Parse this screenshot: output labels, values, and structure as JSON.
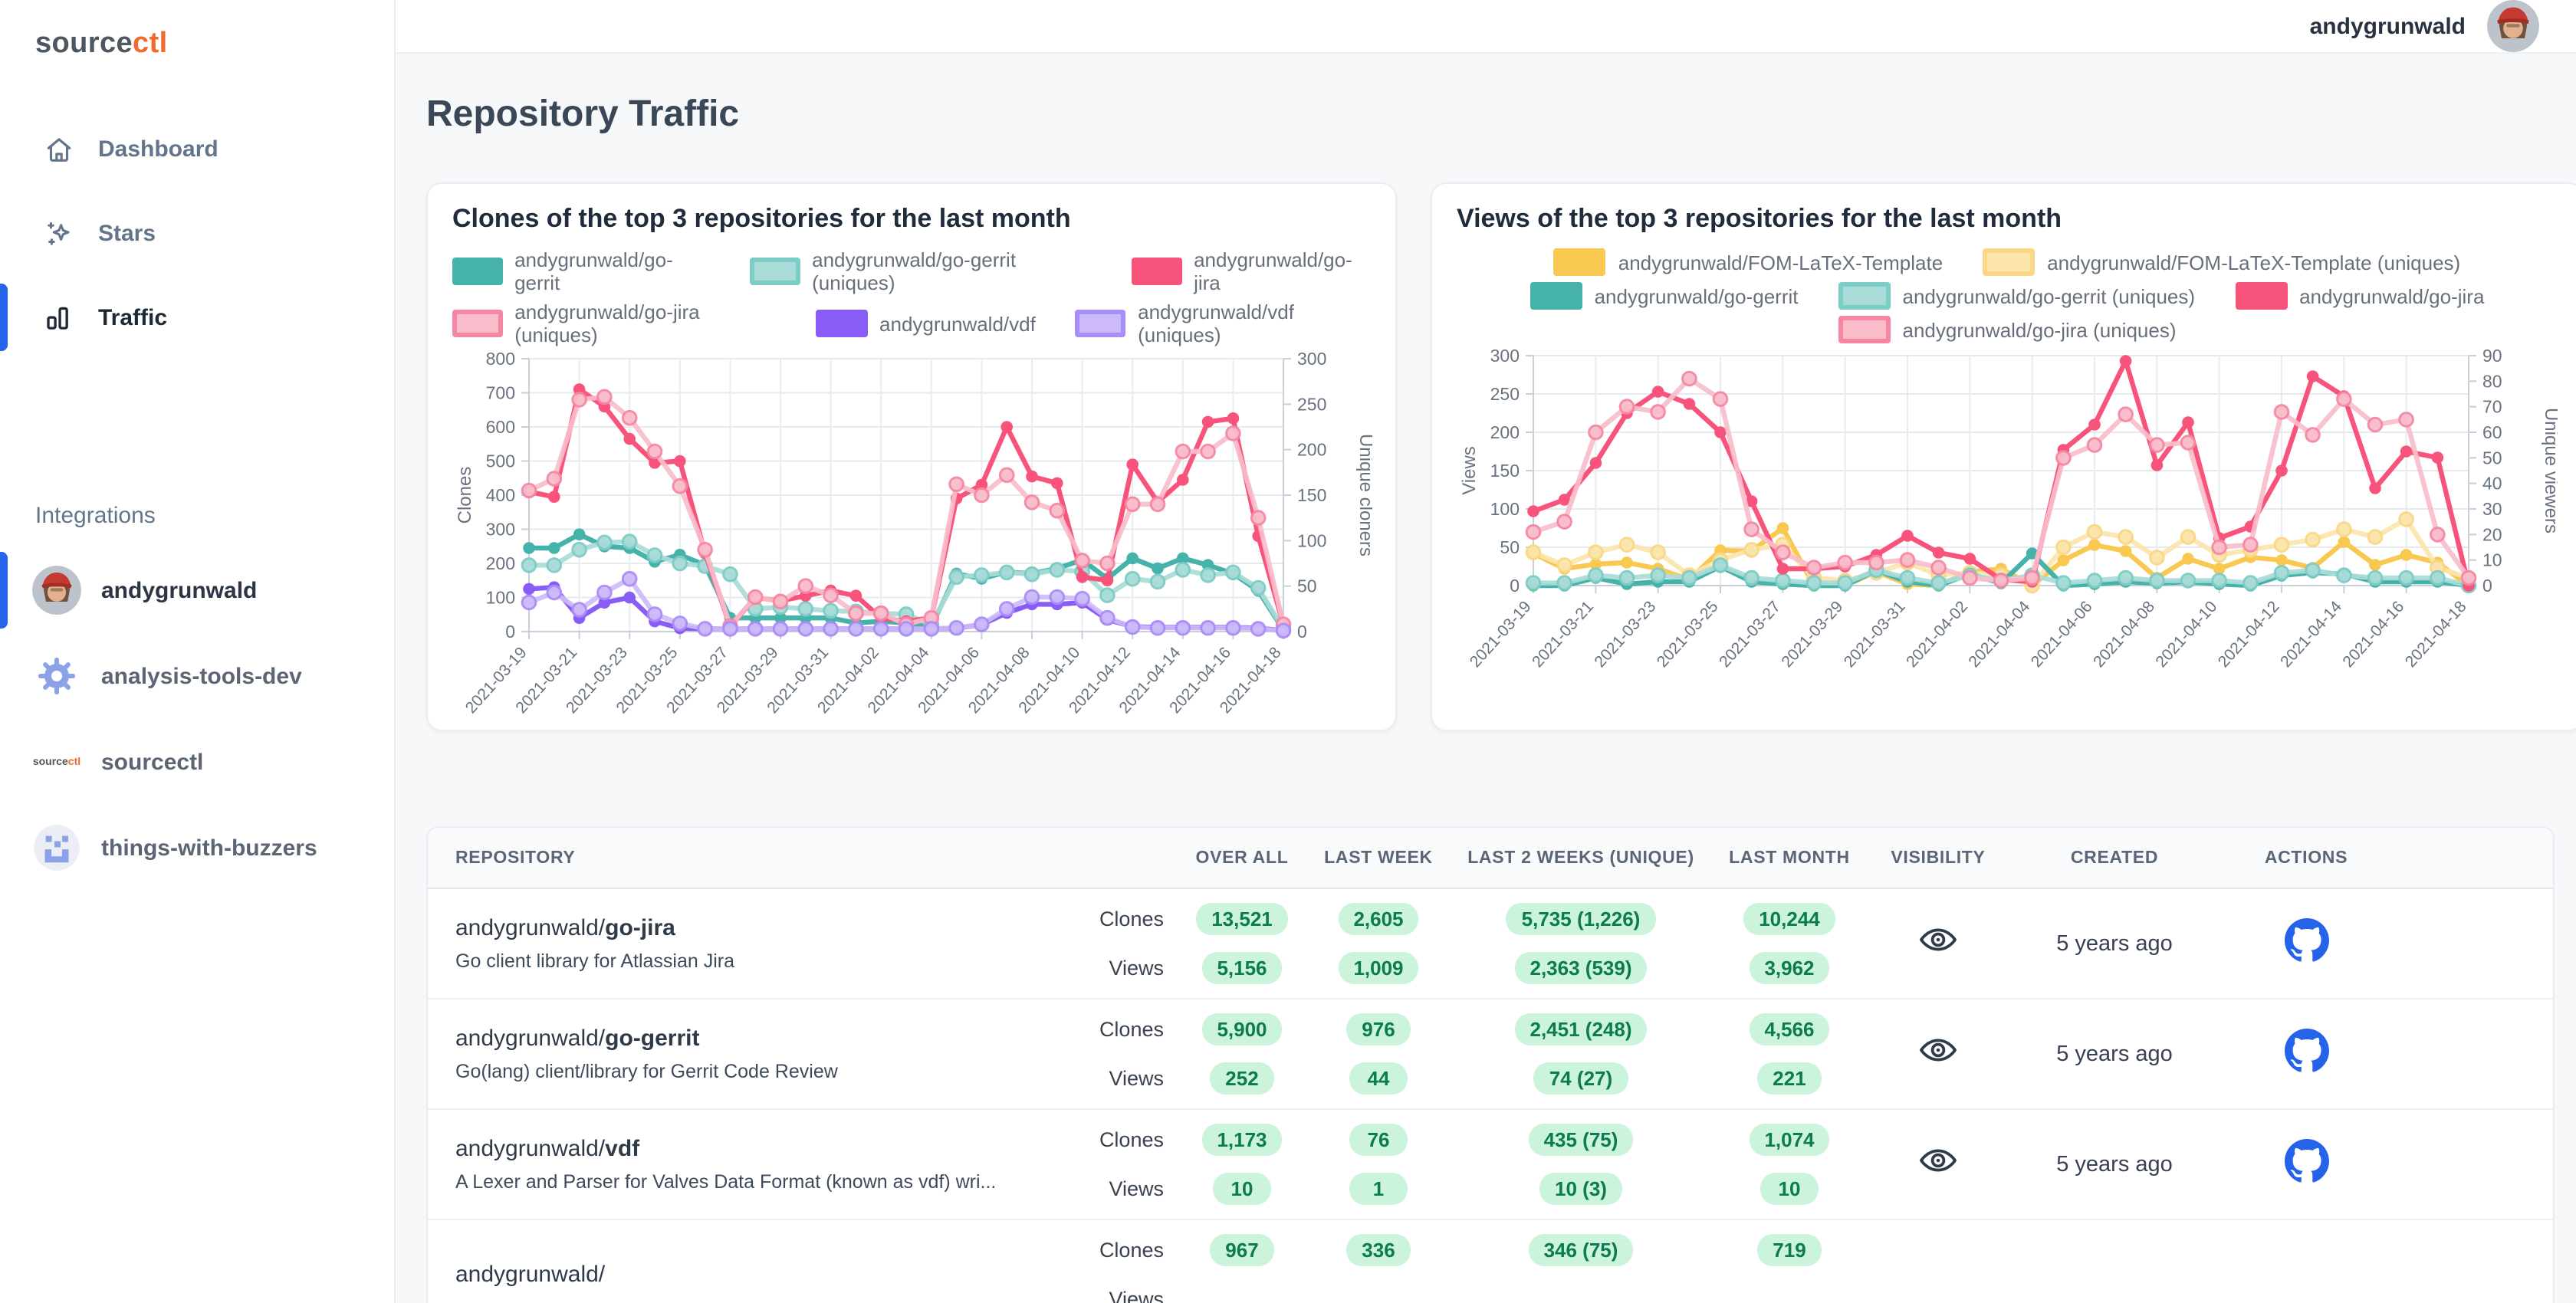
{
  "sidebar": {
    "logo": {
      "part1": "source",
      "part2": "ctl"
    },
    "nav": [
      {
        "label": "Dashboard",
        "icon": "home-icon",
        "active": false
      },
      {
        "label": "Stars",
        "icon": "sparkles-icon",
        "active": false
      },
      {
        "label": "Traffic",
        "icon": "bar-chart-icon",
        "active": true
      }
    ],
    "integrations_title": "Integrations",
    "integrations": [
      {
        "label": "andygrunwald",
        "icon": "avatar",
        "active": true
      },
      {
        "label": "analysis-tools-dev",
        "icon": "gear-icon",
        "active": false
      },
      {
        "label": "sourcectl",
        "icon": "sourcectl-logo",
        "active": false
      },
      {
        "label": "things-with-buzzers",
        "icon": "buzzer-icon",
        "active": false
      }
    ]
  },
  "topbar": {
    "username": "andygrunwald"
  },
  "page": {
    "title": "Repository Traffic"
  },
  "colors": {
    "accent_blue": "#2563EB",
    "brand_orange": "#F2692C",
    "pill_bg": "#CCF3DC",
    "pill_text": "#0A7B52"
  },
  "chart_data": [
    {
      "type": "line",
      "title": "Clones of the top 3 repositories for the last month",
      "x": [
        "2021-03-19",
        "2021-03-20",
        "2021-03-21",
        "2021-03-22",
        "2021-03-23",
        "2021-03-24",
        "2021-03-25",
        "2021-03-26",
        "2021-03-27",
        "2021-03-28",
        "2021-03-29",
        "2021-03-30",
        "2021-03-31",
        "2021-04-01",
        "2021-04-02",
        "2021-04-03",
        "2021-04-04",
        "2021-04-05",
        "2021-04-06",
        "2021-04-07",
        "2021-04-08",
        "2021-04-09",
        "2021-04-10",
        "2021-04-11",
        "2021-04-12",
        "2021-04-13",
        "2021-04-14",
        "2021-04-15",
        "2021-04-16",
        "2021-04-17",
        "2021-04-18"
      ],
      "x_tick_every": 2,
      "grid": true,
      "legend_position": "top",
      "left_axis": {
        "label": "Clones",
        "min": 0,
        "max": 800,
        "step": 100
      },
      "right_axis": {
        "label": "Unique cloners",
        "min": 0,
        "max": 300,
        "step": 50
      },
      "legend_rows": [
        [
          0,
          1,
          2
        ],
        [
          3,
          4,
          5
        ]
      ],
      "series": [
        {
          "name": "andygrunwald/go-gerrit",
          "axis": "left",
          "color": "#46B3AB",
          "values": [
            245,
            245,
            285,
            250,
            245,
            205,
            225,
            195,
            40,
            40,
            40,
            40,
            40,
            25,
            30,
            25,
            15,
            170,
            155,
            175,
            170,
            185,
            210,
            155,
            215,
            185,
            215,
            195,
            170,
            120,
            5
          ]
        },
        {
          "name": "andygrunwald/go-gerrit (uniques)",
          "axis": "right",
          "color": "#A9DCD8",
          "border": "#7ECCC6",
          "values": [
            73,
            73,
            90,
            98,
            99,
            84,
            75,
            72,
            63,
            25,
            27,
            25,
            23,
            22,
            20,
            19,
            8,
            60,
            62,
            65,
            63,
            68,
            66,
            40,
            58,
            55,
            68,
            62,
            65,
            48,
            3
          ]
        },
        {
          "name": "andygrunwald/go-jira",
          "axis": "left",
          "color": "#F8547B",
          "values": [
            410,
            395,
            710,
            660,
            565,
            495,
            500,
            230,
            15,
            100,
            90,
            105,
            120,
            105,
            40,
            30,
            40,
            390,
            430,
            600,
            455,
            435,
            160,
            150,
            490,
            380,
            445,
            615,
            625,
            280,
            20
          ]
        },
        {
          "name": "andygrunwald/go-jira (uniques)",
          "axis": "right",
          "color": "#F9BDCB",
          "border": "#F687A3",
          "values": [
            155,
            168,
            255,
            258,
            235,
            198,
            160,
            90,
            6,
            38,
            33,
            50,
            40,
            20,
            20,
            8,
            15,
            162,
            150,
            172,
            142,
            133,
            78,
            75,
            140,
            140,
            198,
            198,
            218,
            125,
            8
          ]
        },
        {
          "name": "andygrunwald/vdf",
          "axis": "left",
          "color": "#8A5CF6",
          "values": [
            125,
            130,
            40,
            85,
            100,
            30,
            10,
            8,
            8,
            8,
            8,
            8,
            8,
            8,
            8,
            8,
            8,
            10,
            20,
            55,
            80,
            80,
            85,
            35,
            15,
            12,
            12,
            12,
            12,
            10,
            3
          ]
        },
        {
          "name": "andygrunwald/vdf (uniques)",
          "axis": "right",
          "color": "#CDBBF9",
          "border": "#A98DF8",
          "values": [
            32,
            43,
            24,
            43,
            58,
            19,
            9,
            3,
            3,
            3,
            3,
            3,
            3,
            3,
            3,
            3,
            3,
            4,
            8,
            25,
            38,
            38,
            36,
            15,
            5,
            4,
            4,
            4,
            4,
            3,
            1
          ]
        }
      ]
    },
    {
      "type": "line",
      "title": "Views of the top 3 repositories for the last month",
      "x": [
        "2021-03-19",
        "2021-03-20",
        "2021-03-21",
        "2021-03-22",
        "2021-03-23",
        "2021-03-24",
        "2021-03-25",
        "2021-03-26",
        "2021-03-27",
        "2021-03-28",
        "2021-03-29",
        "2021-03-30",
        "2021-03-31",
        "2021-04-01",
        "2021-04-02",
        "2021-04-03",
        "2021-04-04",
        "2021-04-05",
        "2021-04-06",
        "2021-04-07",
        "2021-04-08",
        "2021-04-09",
        "2021-04-10",
        "2021-04-11",
        "2021-04-12",
        "2021-04-13",
        "2021-04-14",
        "2021-04-15",
        "2021-04-16",
        "2021-04-17",
        "2021-04-18"
      ],
      "x_tick_every": 2,
      "grid": true,
      "legend_position": "top",
      "left_axis": {
        "label": "Views",
        "min": 0,
        "max": 300,
        "step": 50
      },
      "right_axis": {
        "label": "Unique viewers",
        "min": 0,
        "max": 90,
        "step": 10
      },
      "legend_rows": [
        [
          0,
          1
        ],
        [
          2,
          3,
          4
        ],
        [
          5
        ]
      ],
      "series": [
        {
          "name": "andygrunwald/FOM-LaTeX-Template",
          "axis": "left",
          "color": "#F9C851",
          "values": [
            42,
            22,
            28,
            30,
            22,
            8,
            46,
            45,
            75,
            0,
            0,
            18,
            2,
            0,
            18,
            22,
            0,
            33,
            53,
            45,
            10,
            35,
            22,
            37,
            33,
            23,
            57,
            27,
            40,
            30,
            0
          ]
        },
        {
          "name": "andygrunwald/FOM-LaTeX-Template (uniques)",
          "axis": "right",
          "color": "#FBE5AC",
          "border": "#FAD784",
          "values": [
            13,
            8,
            13,
            16,
            13,
            4,
            10,
            14,
            16,
            3,
            2,
            5,
            9,
            4,
            5,
            4,
            0,
            15,
            21,
            19,
            11,
            19,
            12,
            14,
            16,
            18,
            22,
            19,
            26,
            7,
            3
          ]
        },
        {
          "name": "andygrunwald/go-gerrit",
          "axis": "left",
          "color": "#46B3AB",
          "values": [
            0,
            0,
            10,
            2,
            5,
            5,
            25,
            5,
            2,
            0,
            0,
            20,
            5,
            0,
            15,
            3,
            42,
            0,
            2,
            5,
            3,
            5,
            2,
            0,
            13,
            17,
            15,
            5,
            5,
            5,
            0
          ]
        },
        {
          "name": "andygrunwald/go-gerrit (uniques)",
          "axis": "right",
          "color": "#A9DCD8",
          "border": "#7ECCC6",
          "values": [
            1,
            1,
            4,
            3,
            4,
            3,
            8,
            3,
            2,
            1,
            1,
            6,
            3,
            1,
            4,
            2,
            4,
            1,
            2,
            3,
            2,
            2,
            2,
            1,
            5,
            6,
            4,
            3,
            3,
            3,
            0
          ]
        },
        {
          "name": "andygrunwald/go-jira",
          "axis": "left",
          "color": "#F8547B",
          "values": [
            97,
            112,
            160,
            225,
            253,
            237,
            200,
            110,
            22,
            22,
            25,
            40,
            65,
            43,
            35,
            8,
            5,
            177,
            210,
            293,
            157,
            213,
            62,
            77,
            150,
            273,
            247,
            127,
            175,
            167,
            0
          ]
        },
        {
          "name": "andygrunwald/go-jira (uniques)",
          "axis": "right",
          "color": "#F9BDCB",
          "border": "#F687A3",
          "values": [
            21,
            25,
            60,
            70,
            68,
            81,
            73,
            22,
            13,
            7,
            9,
            9,
            10,
            7,
            3,
            2,
            3,
            50,
            55,
            67,
            55,
            56,
            15,
            16,
            68,
            59,
            73,
            63,
            65,
            20,
            3
          ]
        }
      ]
    }
  ],
  "table": {
    "headers": [
      "REPOSITORY",
      "",
      "OVER ALL",
      "LAST WEEK",
      "LAST 2 WEEKS (UNIQUE)",
      "LAST MONTH",
      "VISIBILITY",
      "CREATED",
      "ACTIONS"
    ],
    "metric_labels": [
      "Clones",
      "Views"
    ],
    "rows": [
      {
        "owner": "andygrunwald/",
        "repo": "go-jira",
        "description": "Go client library for Atlassian Jira",
        "clones": {
          "overall": "13,521",
          "last_week": "2,605",
          "last_2_weeks": "5,735 (1,226)",
          "last_month": "10,244"
        },
        "views": {
          "overall": "5,156",
          "last_week": "1,009",
          "last_2_weeks": "2,363 (539)",
          "last_month": "3,962"
        },
        "visibility": "public",
        "created": "5 years ago"
      },
      {
        "owner": "andygrunwald/",
        "repo": "go-gerrit",
        "description": "Go(lang) client/library for Gerrit Code Review",
        "clones": {
          "overall": "5,900",
          "last_week": "976",
          "last_2_weeks": "2,451 (248)",
          "last_month": "4,566"
        },
        "views": {
          "overall": "252",
          "last_week": "44",
          "last_2_weeks": "74 (27)",
          "last_month": "221"
        },
        "visibility": "public",
        "created": "5 years ago"
      },
      {
        "owner": "andygrunwald/",
        "repo": "vdf",
        "description": "A Lexer and Parser for Valves Data Format (known as vdf) wri...",
        "clones": {
          "overall": "1,173",
          "last_week": "76",
          "last_2_weeks": "435 (75)",
          "last_month": "1,074"
        },
        "views": {
          "overall": "10",
          "last_week": "1",
          "last_2_weeks": "10 (3)",
          "last_month": "10"
        },
        "visibility": "public",
        "created": "5 years ago"
      },
      {
        "owner": "andygrunwald/",
        "repo": "",
        "description": "",
        "clones": {
          "overall": "967",
          "last_week": "336",
          "last_2_weeks": "346 (75)",
          "last_month": "719"
        },
        "views": {
          "overall": "",
          "last_week": "",
          "last_2_weeks": "",
          "last_month": ""
        },
        "visibility": "",
        "created": ""
      }
    ]
  }
}
